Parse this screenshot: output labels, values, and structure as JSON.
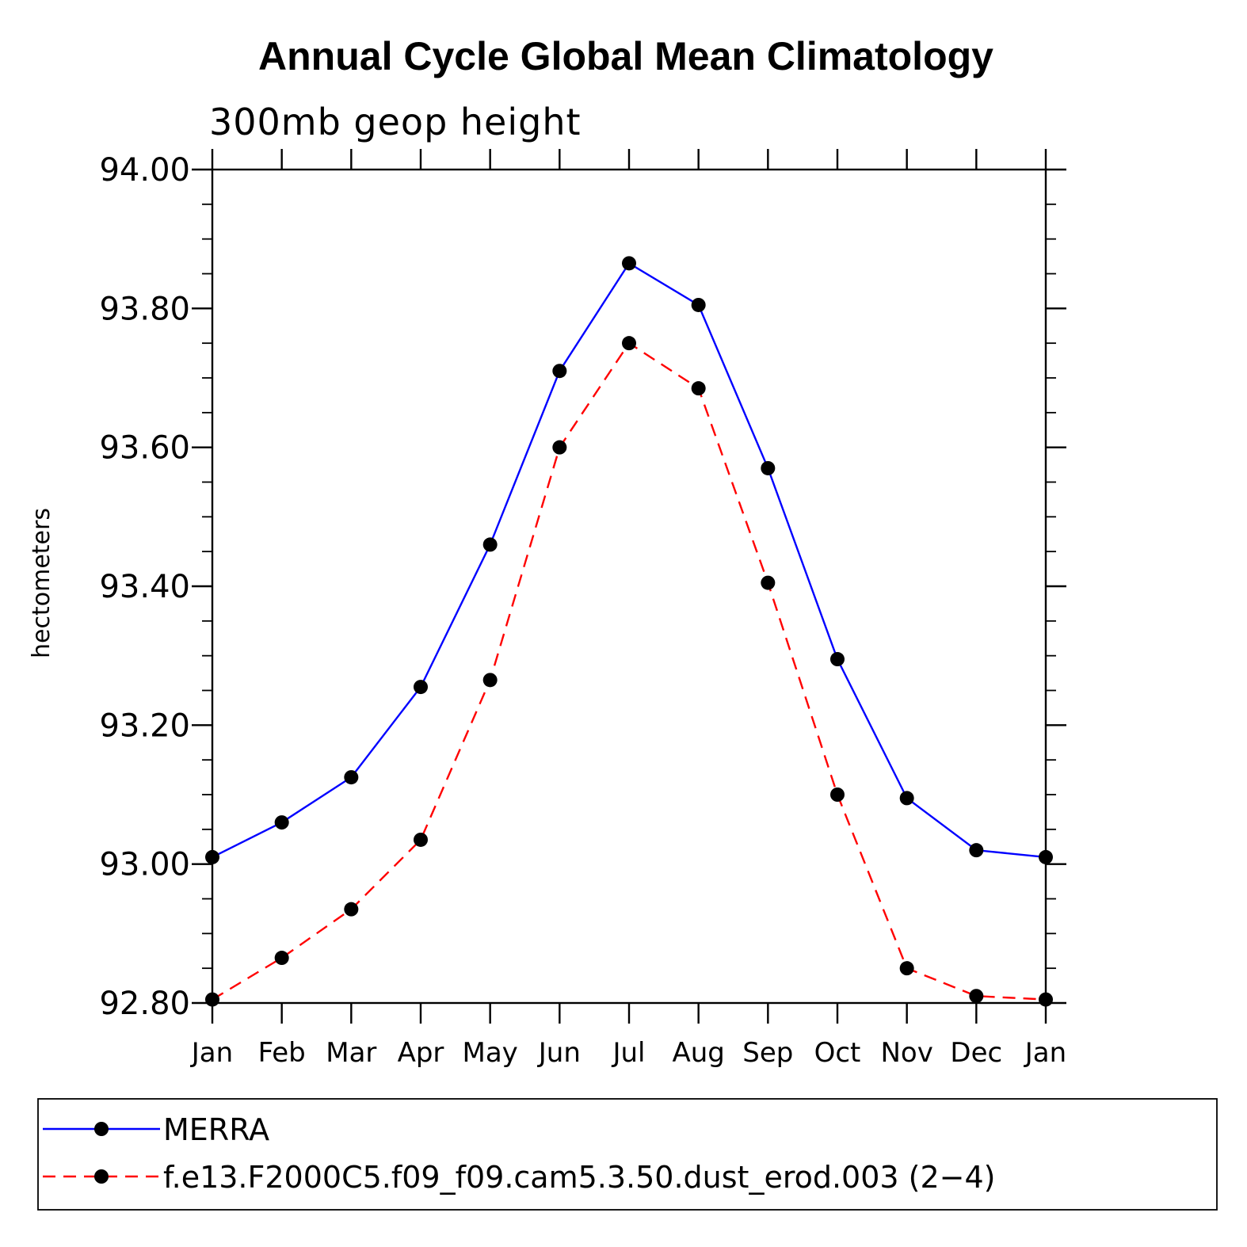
{
  "chart_data": {
    "type": "line",
    "title": "Annual Cycle Global Mean Climatology",
    "subtitle": "300mb geop height",
    "ylabel": "hectometers",
    "xlabel": "",
    "categories": [
      "Jan",
      "Feb",
      "Mar",
      "Apr",
      "May",
      "Jun",
      "Jul",
      "Aug",
      "Sep",
      "Oct",
      "Nov",
      "Dec",
      "Jan"
    ],
    "ylim": [
      92.8,
      94.0
    ],
    "yticks": [
      92.8,
      93.0,
      93.2,
      93.4,
      93.6,
      93.8,
      94.0
    ],
    "ytick_labels": [
      "92.80",
      "93.00",
      "93.20",
      "93.40",
      "93.60",
      "93.80",
      "94.00"
    ],
    "series": [
      {
        "name": "MERRA",
        "color": "#0000ff",
        "dash": "solid",
        "marker": "dot",
        "values": [
          93.01,
          93.06,
          93.125,
          93.255,
          93.46,
          93.71,
          93.865,
          93.805,
          93.57,
          93.295,
          93.095,
          93.02,
          93.01
        ]
      },
      {
        "name": "f.e13.F2000C5.f09_f09.cam5.3.50.dust_erod.003 (2−4)",
        "color": "#ff0000",
        "dash": "dashed",
        "marker": "dot",
        "values": [
          92.805,
          92.865,
          92.935,
          93.035,
          93.265,
          93.6,
          93.75,
          93.685,
          93.405,
          93.1,
          92.85,
          92.81,
          92.805
        ]
      }
    ],
    "grid": false,
    "legend": "bottom"
  }
}
